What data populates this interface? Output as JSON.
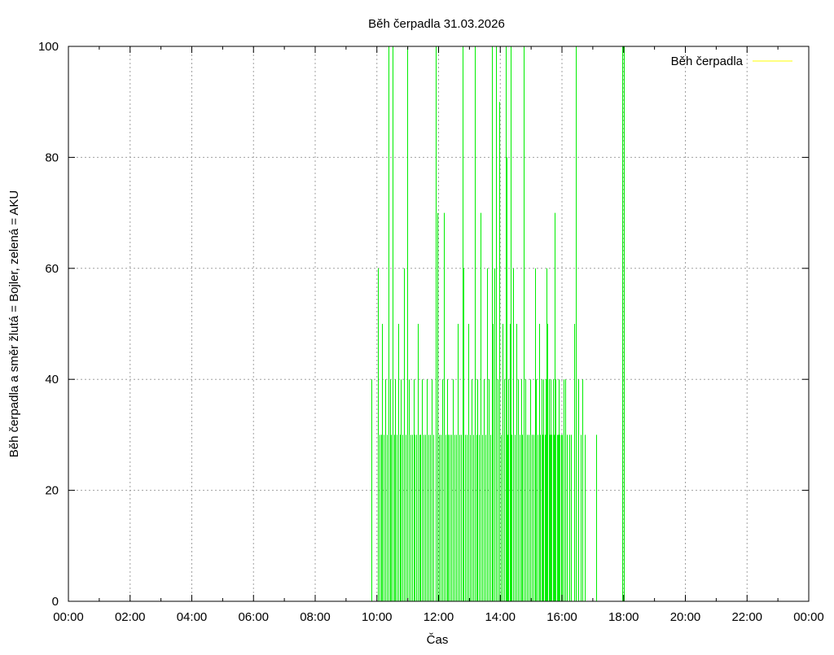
{
  "chart_data": {
    "type": "impulse",
    "title": "Běh čerpadla 31.03.2026",
    "xlabel": "Čas",
    "ylabel": "Běh čerpadla a směr žlutá = Bojler, zelená = AKU",
    "xlim_hours": [
      0,
      24
    ],
    "ylim": [
      0,
      100
    ],
    "x_ticks": [
      "00:00",
      "02:00",
      "04:00",
      "06:00",
      "08:00",
      "10:00",
      "12:00",
      "14:00",
      "16:00",
      "18:00",
      "20:00",
      "22:00",
      "00:00"
    ],
    "y_ticks": [
      "0",
      "20",
      "40",
      "60",
      "80",
      "100"
    ],
    "grid": true,
    "legend": {
      "position": "top-right",
      "entries": [
        {
          "label": "Běh čerpadla",
          "color": "#ffff00"
        }
      ]
    },
    "series_color": "#00ee00",
    "series": [
      {
        "values": [
          [
            "09:50",
            40
          ],
          [
            "10:02",
            60
          ],
          [
            "10:05",
            30
          ],
          [
            "10:08",
            30
          ],
          [
            "10:10",
            50
          ],
          [
            "10:13",
            30
          ],
          [
            "10:17",
            40
          ],
          [
            "10:20",
            30
          ],
          [
            "10:22",
            100
          ],
          [
            "10:25",
            40
          ],
          [
            "10:28",
            30
          ],
          [
            "10:30",
            100
          ],
          [
            "10:33",
            30
          ],
          [
            "10:35",
            40
          ],
          [
            "10:38",
            30
          ],
          [
            "10:41",
            50
          ],
          [
            "10:44",
            30
          ],
          [
            "10:47",
            40
          ],
          [
            "10:50",
            30
          ],
          [
            "10:53",
            60
          ],
          [
            "10:56",
            30
          ],
          [
            "10:59",
            100
          ],
          [
            "11:02",
            40
          ],
          [
            "11:05",
            30
          ],
          [
            "11:08",
            30
          ],
          [
            "11:11",
            40
          ],
          [
            "11:14",
            30
          ],
          [
            "11:17",
            30
          ],
          [
            "11:20",
            50
          ],
          [
            "11:22",
            30
          ],
          [
            "11:25",
            30
          ],
          [
            "11:28",
            40
          ],
          [
            "11:31",
            30
          ],
          [
            "11:34",
            30
          ],
          [
            "11:37",
            40
          ],
          [
            "11:40",
            30
          ],
          [
            "11:44",
            30
          ],
          [
            "11:47",
            40
          ],
          [
            "11:50",
            30
          ],
          [
            "11:55",
            100
          ],
          [
            "11:58",
            70
          ],
          [
            "12:01",
            30
          ],
          [
            "12:04",
            30
          ],
          [
            "12:07",
            40
          ],
          [
            "12:10",
            70
          ],
          [
            "12:13",
            30
          ],
          [
            "12:16",
            40
          ],
          [
            "12:19",
            30
          ],
          [
            "12:22",
            30
          ],
          [
            "12:25",
            30
          ],
          [
            "12:28",
            40
          ],
          [
            "12:31",
            30
          ],
          [
            "12:34",
            30
          ],
          [
            "12:37",
            50
          ],
          [
            "12:40",
            30
          ],
          [
            "12:43",
            30
          ],
          [
            "12:46",
            100
          ],
          [
            "12:49",
            60
          ],
          [
            "12:52",
            30
          ],
          [
            "12:55",
            30
          ],
          [
            "12:58",
            50
          ],
          [
            "13:01",
            30
          ],
          [
            "13:04",
            40
          ],
          [
            "13:07",
            30
          ],
          [
            "13:10",
            100
          ],
          [
            "13:13",
            30
          ],
          [
            "13:16",
            40
          ],
          [
            "13:19",
            30
          ],
          [
            "13:22",
            70
          ],
          [
            "13:25",
            30
          ],
          [
            "13:28",
            40
          ],
          [
            "13:31",
            30
          ],
          [
            "13:34",
            60
          ],
          [
            "13:37",
            40
          ],
          [
            "13:40",
            30
          ],
          [
            "13:43",
            100
          ],
          [
            "13:46",
            50
          ],
          [
            "13:49",
            60
          ],
          [
            "13:52",
            100
          ],
          [
            "13:55",
            40
          ],
          [
            "13:58",
            90
          ],
          [
            "14:01",
            30
          ],
          [
            "14:04",
            50
          ],
          [
            "14:07",
            40
          ],
          [
            "14:10",
            100
          ],
          [
            "14:12",
            80
          ],
          [
            "14:14",
            30
          ],
          [
            "14:16",
            40
          ],
          [
            "14:18",
            50
          ],
          [
            "14:20",
            100
          ],
          [
            "14:22",
            30
          ],
          [
            "14:25",
            60
          ],
          [
            "14:28",
            30
          ],
          [
            "14:31",
            50
          ],
          [
            "14:34",
            40
          ],
          [
            "14:37",
            30
          ],
          [
            "14:40",
            40
          ],
          [
            "14:43",
            30
          ],
          [
            "14:46",
            100
          ],
          [
            "14:49",
            40
          ],
          [
            "14:52",
            30
          ],
          [
            "14:55",
            30
          ],
          [
            "14:58",
            40
          ],
          [
            "15:01",
            30
          ],
          [
            "15:04",
            30
          ],
          [
            "15:07",
            60
          ],
          [
            "15:10",
            40
          ],
          [
            "15:13",
            30
          ],
          [
            "15:16",
            50
          ],
          [
            "15:18",
            30
          ],
          [
            "15:20",
            40
          ],
          [
            "15:22",
            30
          ],
          [
            "15:24",
            40
          ],
          [
            "15:26",
            30
          ],
          [
            "15:28",
            40
          ],
          [
            "15:30",
            60
          ],
          [
            "15:32",
            50
          ],
          [
            "15:34",
            40
          ],
          [
            "15:36",
            30
          ],
          [
            "15:38",
            40
          ],
          [
            "15:40",
            30
          ],
          [
            "15:42",
            40
          ],
          [
            "15:44",
            30
          ],
          [
            "15:46",
            70
          ],
          [
            "15:48",
            40
          ],
          [
            "15:50",
            30
          ],
          [
            "15:52",
            30
          ],
          [
            "15:54",
            40
          ],
          [
            "15:56",
            30
          ],
          [
            "15:58",
            30
          ],
          [
            "16:00",
            30
          ],
          [
            "16:03",
            40
          ],
          [
            "16:06",
            40
          ],
          [
            "16:10",
            30
          ],
          [
            "16:14",
            30
          ],
          [
            "16:18",
            30
          ],
          [
            "16:23",
            50
          ],
          [
            "16:27",
            100
          ],
          [
            "16:31",
            40
          ],
          [
            "16:36",
            30
          ],
          [
            "16:40",
            40
          ],
          [
            "16:45",
            30
          ],
          [
            "17:07",
            30
          ],
          [
            "17:58",
            100
          ],
          [
            "18:00",
            100
          ]
        ]
      }
    ]
  }
}
